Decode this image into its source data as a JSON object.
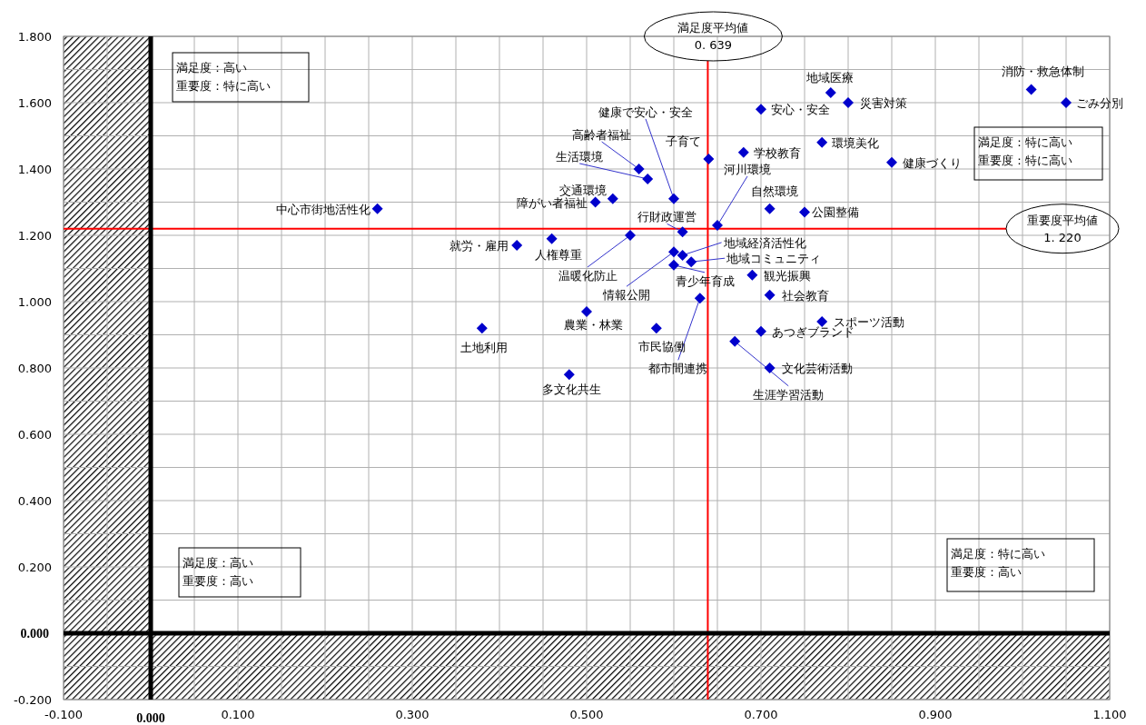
{
  "chart_data": {
    "type": "scatter",
    "color": "#0000cc",
    "marker": "diamond",
    "grid": true,
    "xlim": [
      -0.1,
      1.1
    ],
    "ylim": [
      -0.2,
      1.8
    ],
    "xticks": [
      {
        "value": -0.1,
        "label": "-0.100"
      },
      {
        "value": 0,
        "label": "0.000"
      },
      {
        "value": 0.1,
        "label": "0.100"
      },
      {
        "value": 0.3,
        "label": "0.300"
      },
      {
        "value": 0.5,
        "label": "0.500"
      },
      {
        "value": 0.7,
        "label": "0.700"
      },
      {
        "value": 0.9,
        "label": "0.900"
      },
      {
        "value": 1.1,
        "label": "1.100"
      }
    ],
    "yticks": [
      {
        "value": -0.2,
        "label": "-0.200"
      },
      {
        "value": 0,
        "label": "0.000"
      },
      {
        "value": 0.2,
        "label": "0.200"
      },
      {
        "value": 0.4,
        "label": "0.400"
      },
      {
        "value": 0.6,
        "label": "0.600"
      },
      {
        "value": 0.8,
        "label": "0.800"
      },
      {
        "value": 1.0,
        "label": "1.000"
      },
      {
        "value": 1.2,
        "label": "1.200"
      },
      {
        "value": 1.4,
        "label": "1.400"
      },
      {
        "value": 1.6,
        "label": "1.600"
      },
      {
        "value": 1.8,
        "label": "1.800"
      }
    ],
    "x": [
      0.26,
      0.51,
      0.53,
      0.57,
      0.56,
      0.6,
      0.64,
      0.7,
      0.78,
      0.8,
      1.01,
      1.05,
      0.68,
      0.77,
      0.85,
      0.65,
      0.71,
      0.75,
      0.61,
      0.42,
      0.46,
      0.55,
      0.6,
      0.61,
      0.62,
      0.6,
      0.69,
      0.71,
      0.63,
      0.58,
      0.5,
      0.38,
      0.48,
      0.77,
      0.7,
      0.67,
      0.71
    ],
    "values": [
      1.28,
      1.3,
      1.31,
      1.37,
      1.4,
      1.31,
      1.43,
      1.58,
      1.63,
      1.6,
      1.64,
      1.6,
      1.45,
      1.48,
      1.42,
      1.23,
      1.28,
      1.27,
      1.21,
      1.17,
      1.19,
      1.2,
      1.15,
      1.14,
      1.12,
      1.11,
      1.08,
      1.02,
      1.01,
      0.92,
      0.97,
      0.92,
      0.78,
      0.94,
      0.91,
      0.88,
      0.8
    ],
    "ref_lines": [
      {
        "axis": "x",
        "value": 0.639,
        "label": "満足度平均値\n0. 639",
        "color": "#ff0000"
      },
      {
        "axis": "y",
        "value": 1.22,
        "label": "重要度平均値\n1. 220",
        "color": "#ff0000"
      }
    ],
    "bands": [
      {
        "axis": "x",
        "from": -0.1,
        "to": 0
      },
      {
        "axis": "y",
        "from": -0.2,
        "to": 0
      }
    ],
    "annotations": [
      {
        "text": "中心市街地活性化",
        "x": 0.26,
        "y": 1.28
      },
      {
        "text": "障がい者福祉",
        "x": 0.51,
        "y": 1.3
      },
      {
        "text": "交通環境",
        "x": 0.53,
        "y": 1.31
      },
      {
        "text": "生活環境",
        "x": 0.57,
        "y": 1.37
      },
      {
        "text": "高齢者福祉",
        "x": 0.56,
        "y": 1.4
      },
      {
        "text": "健康で安心・安全",
        "x": 0.6,
        "y": 1.31
      },
      {
        "text": "子育て",
        "x": 0.64,
        "y": 1.43
      },
      {
        "text": "安心・安全",
        "x": 0.7,
        "y": 1.58
      },
      {
        "text": "地域医療",
        "x": 0.78,
        "y": 1.63
      },
      {
        "text": "災害対策",
        "x": 0.8,
        "y": 1.6
      },
      {
        "text": "消防・救急体制",
        "x": 1.01,
        "y": 1.64
      },
      {
        "text": "ごみ分別",
        "x": 1.05,
        "y": 1.6
      },
      {
        "text": "学校教育",
        "x": 0.68,
        "y": 1.45
      },
      {
        "text": "環境美化",
        "x": 0.77,
        "y": 1.48
      },
      {
        "text": "健康づくり",
        "x": 0.85,
        "y": 1.42
      },
      {
        "text": "河川環境",
        "x": 0.65,
        "y": 1.23
      },
      {
        "text": "自然環境",
        "x": 0.71,
        "y": 1.28
      },
      {
        "text": "公園整備",
        "x": 0.75,
        "y": 1.27
      },
      {
        "text": "行財政運営",
        "x": 0.61,
        "y": 1.21
      },
      {
        "text": "就労・雇用",
        "x": 0.42,
        "y": 1.17
      },
      {
        "text": "人権尊重",
        "x": 0.46,
        "y": 1.19
      },
      {
        "text": "温暖化防止",
        "x": 0.55,
        "y": 1.2
      },
      {
        "text": "情報公開",
        "x": 0.6,
        "y": 1.15
      },
      {
        "text": "地域経済活性化",
        "x": 0.61,
        "y": 1.14
      },
      {
        "text": "地域コミュニティ",
        "x": 0.62,
        "y": 1.12
      },
      {
        "text": "青少年育成",
        "x": 0.6,
        "y": 1.11
      },
      {
        "text": "観光振興",
        "x": 0.69,
        "y": 1.08
      },
      {
        "text": "社会教育",
        "x": 0.71,
        "y": 1.02
      },
      {
        "text": "都市間連携",
        "x": 0.63,
        "y": 1.01
      },
      {
        "text": "市民協働",
        "x": 0.58,
        "y": 0.92
      },
      {
        "text": "農業・林業",
        "x": 0.5,
        "y": 0.97
      },
      {
        "text": "土地利用",
        "x": 0.38,
        "y": 0.92
      },
      {
        "text": "多文化共生",
        "x": 0.48,
        "y": 0.78
      },
      {
        "text": "スポーツ活動",
        "x": 0.77,
        "y": 0.94
      },
      {
        "text": "あつぎブランド",
        "x": 0.7,
        "y": 0.91
      },
      {
        "text": "生涯学習活動",
        "x": 0.67,
        "y": 0.88
      },
      {
        "text": "文化芸術活動",
        "x": 0.71,
        "y": 0.8
      },
      "満足度：高い",
      "重要度：特に高い",
      "満足度：高い",
      "重要度：高い",
      "満足度：特に高い",
      "重要度：特に高い",
      "満足度：特に高い",
      "重要度：高い"
    ]
  }
}
